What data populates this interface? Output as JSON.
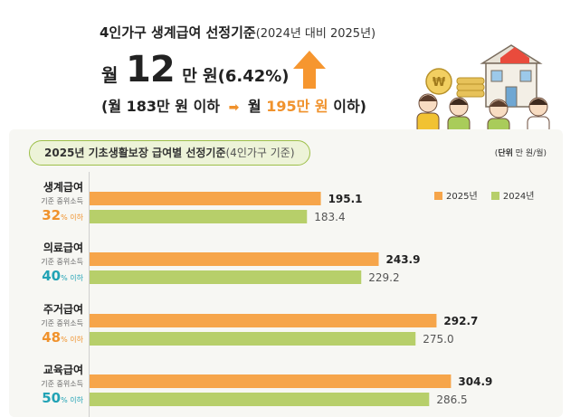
{
  "header": {
    "title": "4인가구 생계급여 선정기준",
    "title_sub": "(2024년 대비 2025년)",
    "big_prefix": "월",
    "big_number": "12",
    "big_suffix": "만 원(6.42%)",
    "range_open": "(월 183만 원 이하",
    "range_new_prefix": "월",
    "range_new_amount": "195만 원",
    "range_close": "이하)"
  },
  "panel": {
    "title_main": "2025년 기초생활보장 급여별 선정기준",
    "title_sub": "(4인가구 기준)",
    "unit_label": "단위",
    "unit_value": "만 원/월"
  },
  "categories": [
    {
      "name": "생계급여",
      "std": "기준 중위소득",
      "pct": "32",
      "pct_suffix": "% 이하"
    },
    {
      "name": "의료급여",
      "std": "기준 중위소득",
      "pct": "40",
      "pct_suffix": "% 이하"
    },
    {
      "name": "주거급여",
      "std": "기준 중위소득",
      "pct": "48",
      "pct_suffix": "% 이하"
    },
    {
      "name": "교육급여",
      "std": "기준 중위소득",
      "pct": "50",
      "pct_suffix": "% 이하"
    }
  ],
  "colors": {
    "orange": "#f6a54a",
    "green": "#b7cf6a",
    "pct_orange": "#f0922c",
    "pct_teal": "#22a3b5"
  },
  "chart_data": {
    "type": "bar",
    "orientation": "horizontal",
    "categories": [
      "생계급여",
      "의료급여",
      "주거급여",
      "교육급여"
    ],
    "series": [
      {
        "name": "2025년",
        "values": [
          195.1,
          243.9,
          292.7,
          304.9
        ],
        "labels": [
          "195.1",
          "243.9",
          "292.7",
          "304.9"
        ]
      },
      {
        "name": "2024년",
        "values": [
          183.4,
          229.2,
          275.0,
          286.5
        ],
        "labels": [
          "183.4",
          "229.2",
          "275.0",
          "286.5"
        ]
      }
    ],
    "legend_position": "top-right",
    "grid": false
  }
}
